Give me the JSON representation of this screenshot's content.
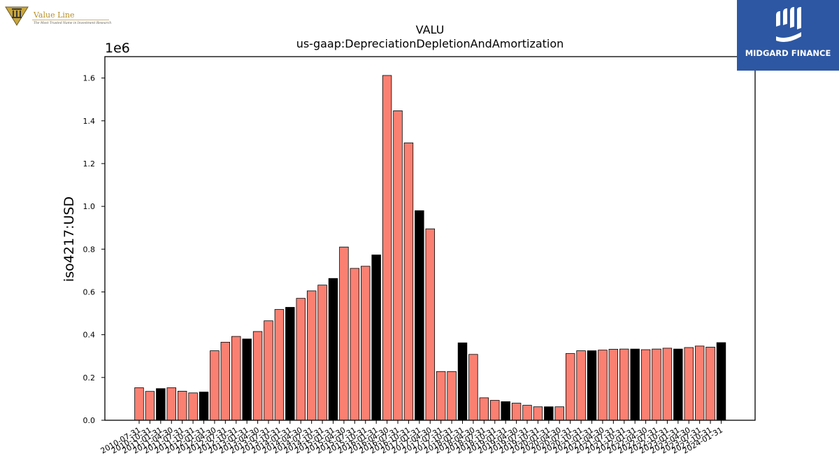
{
  "branding": {
    "left_logo_name": "Value Line",
    "left_logo_tagline": "The Most Trusted Name in Investment Research",
    "right_logo_name": "MIDGARD FINANCE",
    "right_logo_color": "#2d57a3"
  },
  "chart_data": {
    "type": "bar",
    "title": "VALU",
    "subtitle": "us-gaap:DepreciationDepletionAndAmortization",
    "ylabel": "iso4217:USD",
    "xlabel": "",
    "y_multiplier_label": "1e6",
    "ylim": [
      0,
      1.7
    ],
    "yticks": [
      "0.0",
      "0.2",
      "0.4",
      "0.6",
      "0.8",
      "1.0",
      "1.2",
      "1.4",
      "1.6"
    ],
    "grid": false,
    "legend": "none",
    "colors": {
      "quarter": "#fa8072",
      "fiscal_year_end": "#000000",
      "edge": "#000000"
    },
    "categories": [
      "2010-07-31",
      "2010-10-31",
      "2011-01-31",
      "2011-04-30",
      "2011-07-31",
      "2011-10-31",
      "2012-01-31",
      "2012-04-30",
      "2012-07-31",
      "2012-10-31",
      "2013-01-31",
      "2013-04-30",
      "2013-07-31",
      "2013-10-31",
      "2014-01-31",
      "2014-04-30",
      "2014-07-31",
      "2014-10-31",
      "2015-01-31",
      "2015-04-30",
      "2015-07-31",
      "2015-10-31",
      "2016-01-31",
      "2016-04-30",
      "2016-07-31",
      "2016-10-31",
      "2017-01-31",
      "2017-04-30",
      "2017-07-31",
      "2017-10-31",
      "2018-01-31",
      "2018-04-30",
      "2018-07-31",
      "2018-10-31",
      "2019-01-31",
      "2019-04-30",
      "2019-07-31",
      "2019-10-31",
      "2020-01-31",
      "2020-04-30",
      "2020-07-31",
      "2020-10-31",
      "2021-01-31",
      "2021-04-30",
      "2021-07-31",
      "2021-10-31",
      "2022-01-31",
      "2022-04-30",
      "2022-07-31",
      "2022-10-31",
      "2023-01-31",
      "2023-04-30",
      "2023-07-31",
      "2023-10-31",
      "2024-01-31"
    ],
    "values": [
      0.152,
      0.135,
      0.148,
      0.152,
      0.136,
      0.128,
      0.132,
      0.325,
      0.365,
      0.392,
      0.38,
      0.415,
      0.465,
      0.518,
      0.528,
      0.57,
      0.605,
      0.632,
      0.663,
      0.81,
      0.71,
      0.72,
      0.773,
      1.612,
      1.447,
      1.297,
      0.98,
      0.895,
      0.228,
      0.228,
      0.362,
      0.308,
      0.105,
      0.093,
      0.087,
      0.08,
      0.07,
      0.063,
      0.063,
      0.063,
      0.312,
      0.325,
      0.325,
      0.328,
      0.332,
      0.333,
      0.333,
      0.33,
      0.333,
      0.337,
      0.333,
      0.34,
      0.347,
      0.342,
      0.363
    ],
    "highlight": [
      false,
      false,
      true,
      false,
      false,
      false,
      true,
      false,
      false,
      false,
      true,
      false,
      false,
      false,
      true,
      false,
      false,
      false,
      true,
      false,
      false,
      false,
      true,
      false,
      false,
      false,
      true,
      false,
      false,
      false,
      true,
      false,
      false,
      false,
      true,
      false,
      false,
      false,
      true,
      false,
      false,
      false,
      true,
      false,
      false,
      false,
      true,
      false,
      false,
      false,
      true,
      false,
      false,
      false,
      true
    ]
  }
}
